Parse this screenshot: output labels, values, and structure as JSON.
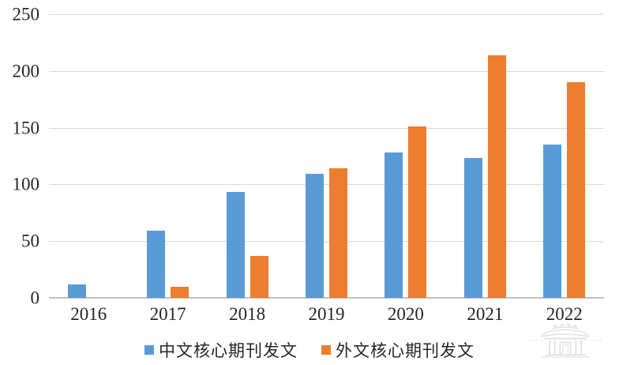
{
  "chart_data": {
    "type": "bar",
    "title": "",
    "categories": [
      "2016",
      "2017",
      "2018",
      "2019",
      "2020",
      "2021",
      "2022"
    ],
    "series": [
      {
        "name": "中文核心期刊发文",
        "color": "#5B9BD5",
        "values": [
          12,
          59,
          93,
          109,
          128,
          123,
          135
        ]
      },
      {
        "name": "外文核心期刊发文",
        "color": "#ED7D31",
        "values": [
          0,
          10,
          37,
          114,
          151,
          214,
          190
        ]
      }
    ],
    "xlabel": "",
    "ylabel": "",
    "ylim": [
      0,
      250
    ],
    "yticks": [
      0,
      50,
      100,
      150,
      200,
      250
    ],
    "grid": "horizontal",
    "legend_position": "bottom"
  },
  "style": {
    "gridline_color": "#d9d9d9",
    "axis_line_color": "#bfbfbf",
    "text_color": "#262626",
    "watermark_color": "#c6c6c6"
  },
  "watermark": {
    "name": "pavilion-logo"
  }
}
